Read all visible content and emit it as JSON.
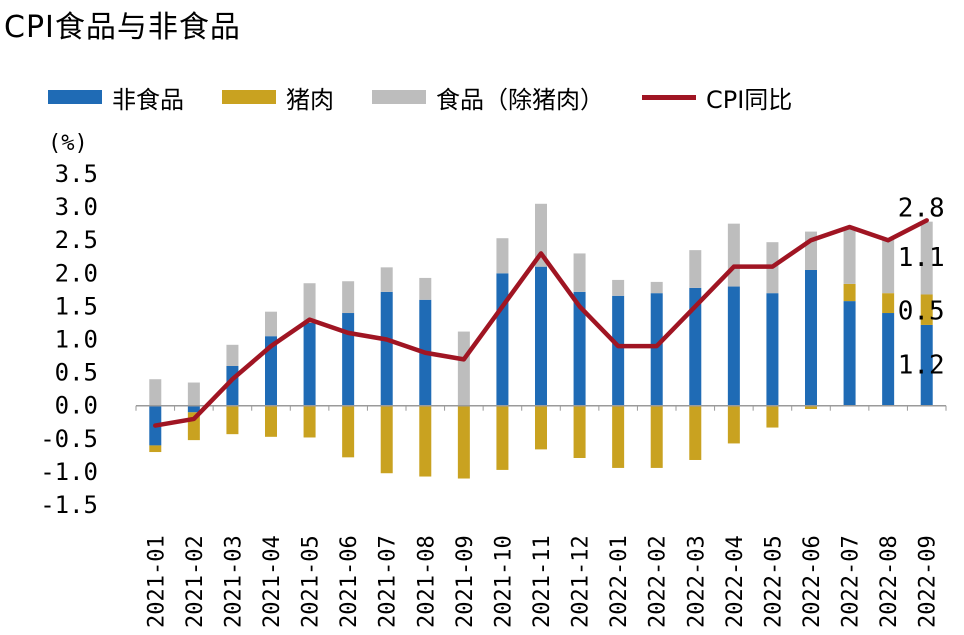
{
  "title": "CPI食品与非食品",
  "chart_data": {
    "type": "bar",
    "stacked": true,
    "unit_label": "(%)",
    "ylim": [
      -1.5,
      3.5
    ],
    "yticks": [
      "3.5",
      "3.0",
      "2.5",
      "2.0",
      "1.5",
      "1.0",
      "0.5",
      "0.0",
      "-0.5",
      "-1.0",
      "-1.5"
    ],
    "categories": [
      "2021-01",
      "2021-02",
      "2021-03",
      "2021-04",
      "2021-05",
      "2021-06",
      "2021-07",
      "2021-08",
      "2021-09",
      "2021-10",
      "2021-11",
      "2021-12",
      "2022-01",
      "2022-02",
      "2022-03",
      "2022-04",
      "2022-05",
      "2022-06",
      "2022-07",
      "2022-08",
      "2022-09"
    ],
    "series": [
      {
        "name": "非食品",
        "kind": "bar",
        "color": "#1f6bb5",
        "values": [
          -0.6,
          -0.1,
          0.6,
          1.05,
          1.25,
          1.4,
          1.72,
          1.6,
          0.0,
          2.0,
          2.1,
          1.72,
          1.66,
          1.7,
          1.78,
          1.8,
          1.7,
          2.05,
          1.58,
          1.4,
          1.22
        ]
      },
      {
        "name": "猪肉",
        "kind": "bar",
        "color": "#c9a220",
        "values": [
          -0.1,
          -0.42,
          -0.43,
          -0.47,
          -0.48,
          -0.78,
          -1.02,
          -1.07,
          -1.1,
          -0.97,
          -0.66,
          -0.79,
          -0.94,
          -0.94,
          -0.82,
          -0.57,
          -0.33,
          -0.05,
          0.26,
          0.3,
          0.46
        ]
      },
      {
        "name": "食品（除猪肉）",
        "kind": "bar",
        "color": "#bdbdbd",
        "values": [
          0.4,
          0.35,
          0.32,
          0.37,
          0.6,
          0.48,
          0.37,
          0.33,
          1.12,
          0.53,
          0.95,
          0.58,
          0.24,
          0.17,
          0.57,
          0.95,
          0.77,
          0.58,
          0.83,
          0.82,
          1.1
        ]
      },
      {
        "name": "CPI同比",
        "kind": "line",
        "color": "#a01523",
        "values": [
          -0.3,
          -0.2,
          0.4,
          0.9,
          1.3,
          1.1,
          1.0,
          0.8,
          0.7,
          1.5,
          2.3,
          1.5,
          0.9,
          0.9,
          1.5,
          2.1,
          2.1,
          2.5,
          2.7,
          2.5,
          2.8
        ]
      }
    ],
    "annotations": [
      {
        "category": "2022-09",
        "series": "CPI同比",
        "text": "2.8"
      },
      {
        "category": "2022-09",
        "series": "食品（除猪肉）",
        "text": "1.1"
      },
      {
        "category": "2022-09",
        "series": "猪肉",
        "text": "0.5"
      },
      {
        "category": "2022-09",
        "series": "非食品",
        "text": "1.2"
      }
    ],
    "legend_position": "top"
  }
}
